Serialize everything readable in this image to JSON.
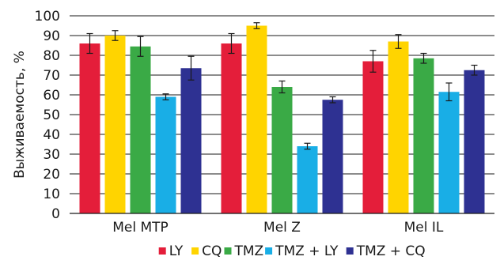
{
  "chart_data": {
    "type": "bar",
    "title": "",
    "xlabel": "",
    "ylabel": "Выживаемость, %",
    "ylim": [
      0,
      100
    ],
    "yticks": [
      0,
      10,
      20,
      30,
      40,
      50,
      60,
      70,
      80,
      90,
      100
    ],
    "grid": true,
    "legend_position": "bottom",
    "categories": [
      "Mel MTP",
      "Mel Z",
      "Mel IL"
    ],
    "series": [
      {
        "name": "LY",
        "color": "#e41e3a",
        "values": [
          86,
          86,
          77
        ],
        "errors": [
          5,
          5,
          5.5
        ]
      },
      {
        "name": "CQ",
        "color": "#ffd400",
        "values": [
          90,
          95,
          87
        ],
        "errors": [
          2.5,
          1.5,
          3.5
        ]
      },
      {
        "name": "TMZ",
        "color": "#3aaa46",
        "values": [
          84.5,
          64,
          78.5
        ],
        "errors": [
          5,
          3,
          2.5
        ]
      },
      {
        "name": "TMZ + LY",
        "color": "#19aee6",
        "values": [
          59,
          34,
          61.5
        ],
        "errors": [
          1.5,
          1.5,
          4.5
        ]
      },
      {
        "name": "TMZ + CQ",
        "color": "#2e3192",
        "values": [
          73.5,
          57.5,
          72.5
        ],
        "errors": [
          6,
          1.5,
          2.5
        ]
      }
    ]
  }
}
